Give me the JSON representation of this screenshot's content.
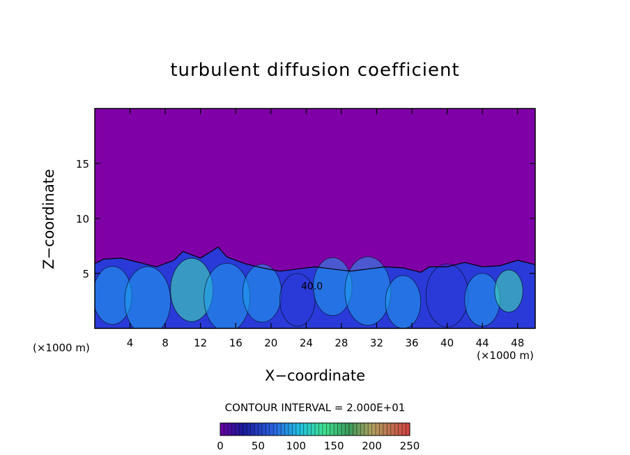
{
  "chart_data": {
    "type": "heatmap",
    "title": "turbulent diffusion coefficient",
    "xlabel": "X−coordinate",
    "ylabel": "Z−coordinate",
    "x_unit_left": "(×1000 m)",
    "x_unit_right": "(×1000 m)",
    "xlim": [
      0,
      50
    ],
    "ylim": [
      0,
      20
    ],
    "x_ticks": [
      4,
      8,
      12,
      16,
      20,
      24,
      28,
      32,
      36,
      40,
      44,
      48
    ],
    "y_ticks": [
      5,
      10,
      15
    ],
    "contour_interval_text": "CONTOUR INTERVAL = 2.000E+01",
    "contour_label": "40.0",
    "colorbar": {
      "ticks": [
        0,
        50,
        100,
        150,
        200,
        250
      ],
      "min": 0,
      "max": 250
    },
    "background_value_color": "#8000a8",
    "boundary_layer_top_profile": [
      {
        "x": 0,
        "z": 5.9
      },
      {
        "x": 1,
        "z": 6.3
      },
      {
        "x": 3,
        "z": 6.4
      },
      {
        "x": 5,
        "z": 6.0
      },
      {
        "x": 7,
        "z": 5.6
      },
      {
        "x": 9,
        "z": 6.2
      },
      {
        "x": 10,
        "z": 7.0
      },
      {
        "x": 12,
        "z": 6.4
      },
      {
        "x": 14,
        "z": 7.4
      },
      {
        "x": 15,
        "z": 6.5
      },
      {
        "x": 17,
        "z": 5.9
      },
      {
        "x": 19,
        "z": 5.5
      },
      {
        "x": 21,
        "z": 5.2
      },
      {
        "x": 23,
        "z": 5.4
      },
      {
        "x": 25,
        "z": 5.6
      },
      {
        "x": 27,
        "z": 5.4
      },
      {
        "x": 29,
        "z": 5.2
      },
      {
        "x": 31,
        "z": 5.4
      },
      {
        "x": 33,
        "z": 5.6
      },
      {
        "x": 35,
        "z": 5.5
      },
      {
        "x": 37,
        "z": 5.1
      },
      {
        "x": 38,
        "z": 5.6
      },
      {
        "x": 40,
        "z": 5.6
      },
      {
        "x": 42,
        "z": 6.0
      },
      {
        "x": 44,
        "z": 5.6
      },
      {
        "x": 46,
        "z": 5.7
      },
      {
        "x": 48,
        "z": 6.2
      },
      {
        "x": 50,
        "z": 5.8
      }
    ],
    "legend_placement": "bottom"
  },
  "colors": {
    "above_layer": "#8000a8",
    "layer_low": "#2a3ad8",
    "layer_mid": "#20a0f0",
    "layer_high": "#44e8b0",
    "axis": "#000000"
  }
}
